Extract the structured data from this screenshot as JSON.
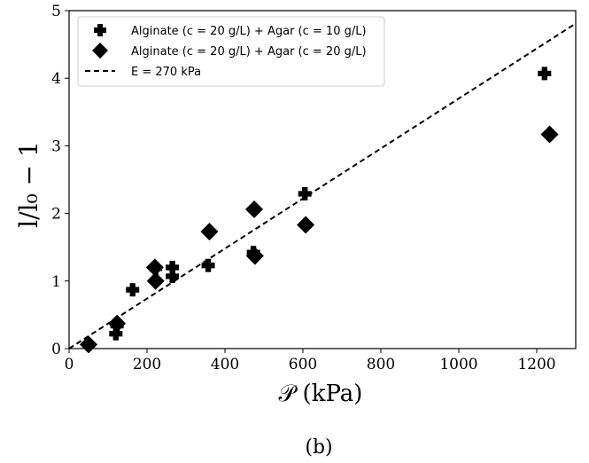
{
  "chart_data": {
    "type": "scatter",
    "xlabel": "𝒫 (kPa)",
    "ylabel": "l/l₀ − 1",
    "xlim": [
      0,
      1300
    ],
    "ylim": [
      0,
      5
    ],
    "xticks": [
      0,
      200,
      400,
      600,
      800,
      1000,
      1200
    ],
    "yticks": [
      0,
      1,
      2,
      3,
      4,
      5
    ],
    "legend_position": "top-left",
    "grid": false,
    "caption": "(b)",
    "series": [
      {
        "name": "Alginate (c = 20 g/L) + Agar (c = 10 g/L)",
        "marker": "plus",
        "points": [
          [
            50,
            0.06
          ],
          [
            120,
            0.22
          ],
          [
            123,
            0.34
          ],
          [
            163,
            0.87
          ],
          [
            222,
            1.19
          ],
          [
            265,
            1.2
          ],
          [
            265,
            1.07
          ],
          [
            357,
            1.23
          ],
          [
            473,
            1.42
          ],
          [
            605,
            2.29
          ],
          [
            1220,
            4.07
          ]
        ]
      },
      {
        "name": "Alginate (c = 20 g/L) + Agar (c = 20 g/L)",
        "marker": "diamond",
        "points": [
          [
            50,
            0.06
          ],
          [
            123,
            0.37
          ],
          [
            220,
            1.2
          ],
          [
            222,
            1.0
          ],
          [
            360,
            1.73
          ],
          [
            475,
            2.06
          ],
          [
            477,
            1.37
          ],
          [
            607,
            1.83
          ],
          [
            1233,
            3.17
          ]
        ]
      },
      {
        "name": "E = 270 kPa",
        "style": "dashed",
        "line": [
          [
            0,
            0
          ],
          [
            1300,
            4.81
          ]
        ]
      }
    ]
  }
}
